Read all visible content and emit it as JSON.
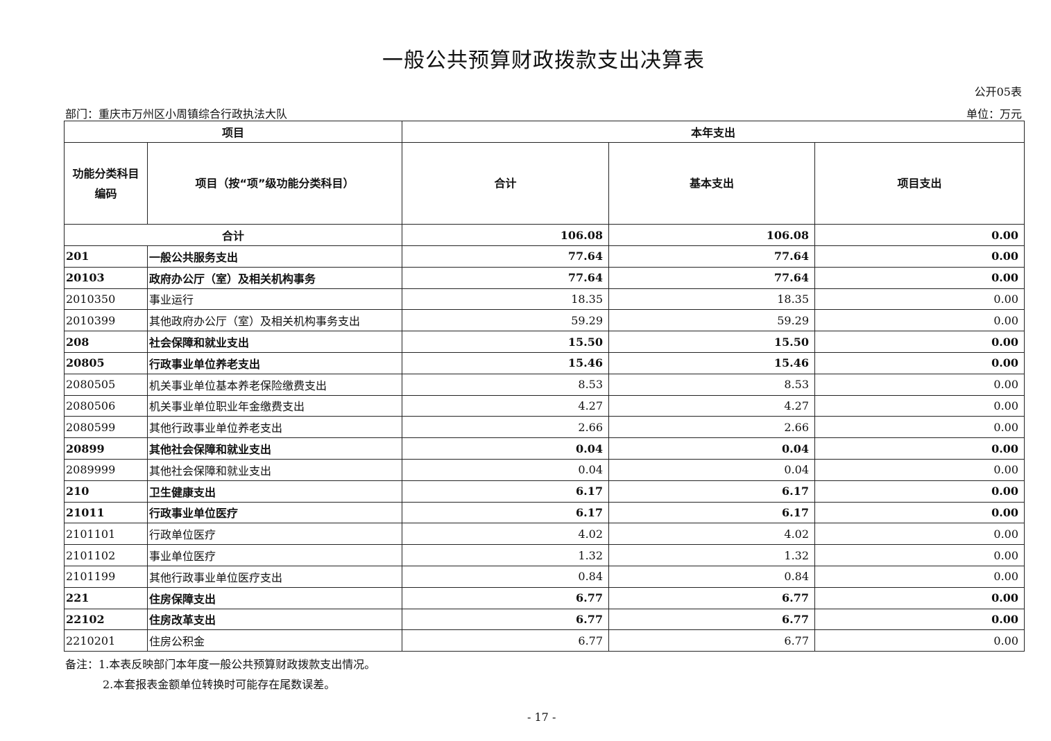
{
  "title": "一般公共预算财政拨款支出决算表",
  "form_no": "公开05表",
  "department": "部门：重庆市万州区小周镇综合行政执法大队",
  "unit": "单位：万元",
  "headers": {
    "item": "项目",
    "current_year": "本年支出",
    "code_line1": "功能分类科目",
    "code_line2": "编码",
    "item_name": "项目（按“项”级功能分类科目）",
    "total": "合计",
    "basic": "基本支出",
    "project": "项目支出"
  },
  "total_row": {
    "label": "合计",
    "total": "106.08",
    "basic": "106.08",
    "project": "0.00"
  },
  "rows": [
    {
      "code": "201",
      "name": "一般公共服务支出",
      "total": "77.64",
      "basic": "77.64",
      "project": "0.00"
    },
    {
      "code": "20103",
      "name": "政府办公厅（室）及相关机构事务",
      "total": "77.64",
      "basic": "77.64",
      "project": "0.00"
    },
    {
      "code": "2010350",
      "name": "事业运行",
      "total": "18.35",
      "basic": "18.35",
      "project": "0.00"
    },
    {
      "code": "2010399",
      "name": "其他政府办公厅（室）及相关机构事务支出",
      "total": "59.29",
      "basic": "59.29",
      "project": "0.00"
    },
    {
      "code": "208",
      "name": "社会保障和就业支出",
      "total": "15.50",
      "basic": "15.50",
      "project": "0.00"
    },
    {
      "code": "20805",
      "name": "行政事业单位养老支出",
      "total": "15.46",
      "basic": "15.46",
      "project": "0.00"
    },
    {
      "code": "2080505",
      "name": "机关事业单位基本养老保险缴费支出",
      "total": "8.53",
      "basic": "8.53",
      "project": "0.00"
    },
    {
      "code": "2080506",
      "name": "机关事业单位职业年金缴费支出",
      "total": "4.27",
      "basic": "4.27",
      "project": "0.00"
    },
    {
      "code": "2080599",
      "name": "其他行政事业单位养老支出",
      "total": "2.66",
      "basic": "2.66",
      "project": "0.00"
    },
    {
      "code": "20899",
      "name": "其他社会保障和就业支出",
      "total": "0.04",
      "basic": "0.04",
      "project": "0.00"
    },
    {
      "code": "2089999",
      "name": "其他社会保障和就业支出",
      "total": "0.04",
      "basic": "0.04",
      "project": "0.00"
    },
    {
      "code": "210",
      "name": "卫生健康支出",
      "total": "6.17",
      "basic": "6.17",
      "project": "0.00"
    },
    {
      "code": "21011",
      "name": "行政事业单位医疗",
      "total": "6.17",
      "basic": "6.17",
      "project": "0.00"
    },
    {
      "code": "2101101",
      "name": "行政单位医疗",
      "total": "4.02",
      "basic": "4.02",
      "project": "0.00"
    },
    {
      "code": "2101102",
      "name": "事业单位医疗",
      "total": "1.32",
      "basic": "1.32",
      "project": "0.00"
    },
    {
      "code": "2101199",
      "name": "其他行政事业单位医疗支出",
      "total": "0.84",
      "basic": "0.84",
      "project": "0.00"
    },
    {
      "code": "221",
      "name": "住房保障支出",
      "total": "6.77",
      "basic": "6.77",
      "project": "0.00"
    },
    {
      "code": "22102",
      "name": "住房改革支出",
      "total": "6.77",
      "basic": "6.77",
      "project": "0.00"
    },
    {
      "code": "2210201",
      "name": "住房公积金",
      "total": "6.77",
      "basic": "6.77",
      "project": "0.00"
    }
  ],
  "notes": [
    "备注：1.本表反映部门本年度一般公共预算财政拨款支出情况。",
    "2.本套报表金额单位转换时可能存在尾数误差。"
  ],
  "page_number": "- 17 -"
}
